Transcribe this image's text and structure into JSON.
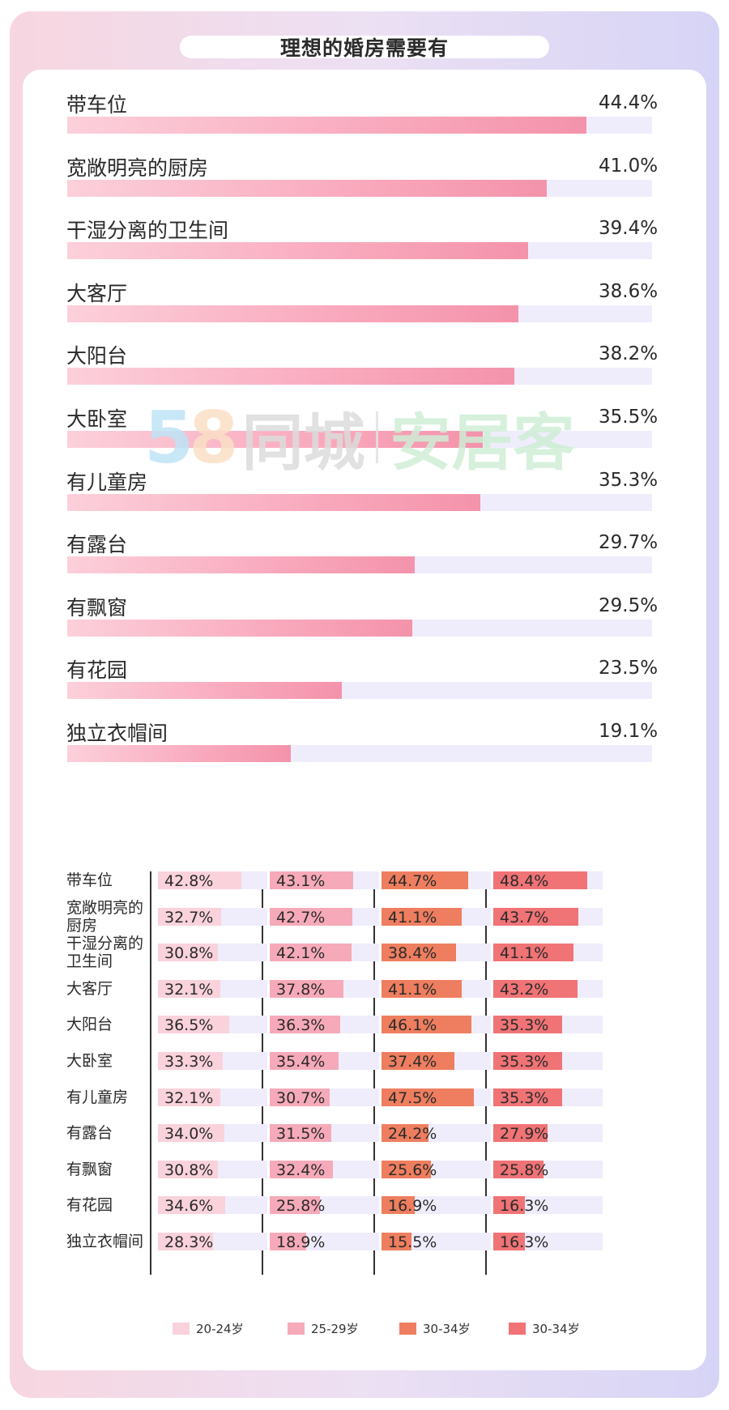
{
  "title": "理想的婚房需要有",
  "colors": {
    "age_20_24": "#f9d2dc",
    "age_25_29": "#f6aab9",
    "age_30_34_a": "#ee7e5f",
    "age_30_34_b": "#f07376",
    "track": "#efedfb"
  },
  "chart_data": [
    {
      "type": "bar",
      "orientation": "horizontal",
      "title": "理想的婚房需要有",
      "categories": [
        "带车位",
        "宽敞明亮的厨房",
        "干湿分离的卫生间",
        "大客厅",
        "大阳台",
        "大卧室",
        "有儿童房",
        "有露台",
        "有飘窗",
        "有花园",
        "独立衣帽间"
      ],
      "values": [
        44.4,
        41.0,
        39.4,
        38.6,
        38.2,
        35.5,
        35.3,
        29.7,
        29.5,
        23.5,
        19.1
      ],
      "value_labels": [
        "44.4%",
        "41.0%",
        "39.4%",
        "38.6%",
        "38.2%",
        "35.5%",
        "35.3%",
        "29.7%",
        "29.5%",
        "23.5%",
        "19.1%"
      ],
      "xlim": [
        0,
        50
      ],
      "unit": "%"
    },
    {
      "type": "bar",
      "orientation": "horizontal",
      "categories": [
        "带车位",
        "宽敞明亮的厨房",
        "干湿分离的卫生间",
        "大客厅",
        "大阳台",
        "大卧室",
        "有儿童房",
        "有露台",
        "有飘窗",
        "有花园",
        "独立衣帽间"
      ],
      "category_labels": [
        [
          "带车位"
        ],
        [
          "宽敞明亮的",
          "厨房"
        ],
        [
          "干湿分离的",
          "卫生间"
        ],
        [
          "大客厅"
        ],
        [
          "大阳台"
        ],
        [
          "大卧室"
        ],
        [
          "有儿童房"
        ],
        [
          "有露台"
        ],
        [
          "有飘窗"
        ],
        [
          "有花园"
        ],
        [
          "独立衣帽间"
        ]
      ],
      "series": [
        {
          "name": "20-24岁",
          "color": "#f9d2dc",
          "values": [
            42.8,
            32.7,
            30.8,
            32.1,
            36.5,
            33.3,
            32.1,
            34.0,
            30.8,
            34.6,
            28.3
          ],
          "labels": [
            "42.8%",
            "32.7%",
            "30.8%",
            "32.1%",
            "36.5%",
            "33.3%",
            "32.1%",
            "34.0%",
            "30.8%",
            "34.6%",
            "28.3%"
          ]
        },
        {
          "name": "25-29岁",
          "color": "#f6aab9",
          "values": [
            43.1,
            42.7,
            42.1,
            37.8,
            36.3,
            35.4,
            30.7,
            31.5,
            32.4,
            25.8,
            18.9
          ],
          "labels": [
            "43.1%",
            "42.7%",
            "42.1%",
            "37.8%",
            "36.3%",
            "35.4%",
            "30.7%",
            "31.5%",
            "32.4%",
            "25.8%",
            "18.9%"
          ]
        },
        {
          "name": "30-34岁",
          "color": "#ee7e5f",
          "values": [
            44.7,
            41.1,
            38.4,
            41.1,
            46.1,
            37.4,
            47.5,
            24.2,
            25.6,
            16.9,
            15.5
          ],
          "labels": [
            "44.7%",
            "41.1%",
            "38.4%",
            "41.1%",
            "46.1%",
            "37.4%",
            "47.5%",
            "24.2%",
            "25.6%",
            "16.9%",
            "15.5%"
          ]
        },
        {
          "name": "30-34岁",
          "color": "#f07376",
          "values": [
            48.4,
            43.7,
            41.1,
            43.2,
            35.3,
            35.3,
            35.3,
            27.9,
            25.8,
            16.3,
            16.3
          ],
          "labels": [
            "48.4%",
            "43.7%",
            "41.1%",
            "43.2%",
            "35.3%",
            "35.3%",
            "35.3%",
            "27.9%",
            "25.8%",
            "16.3%",
            "16.3%"
          ]
        }
      ],
      "xlim": [
        0,
        50
      ],
      "unit": "%",
      "legend": "bottom"
    }
  ],
  "legend_items": [
    "20-24岁",
    "25-29岁",
    "30-34岁",
    "30-34岁"
  ],
  "watermark": {
    "brand_num": "58",
    "brand_a": "同城",
    "brand_b": "安居客"
  }
}
